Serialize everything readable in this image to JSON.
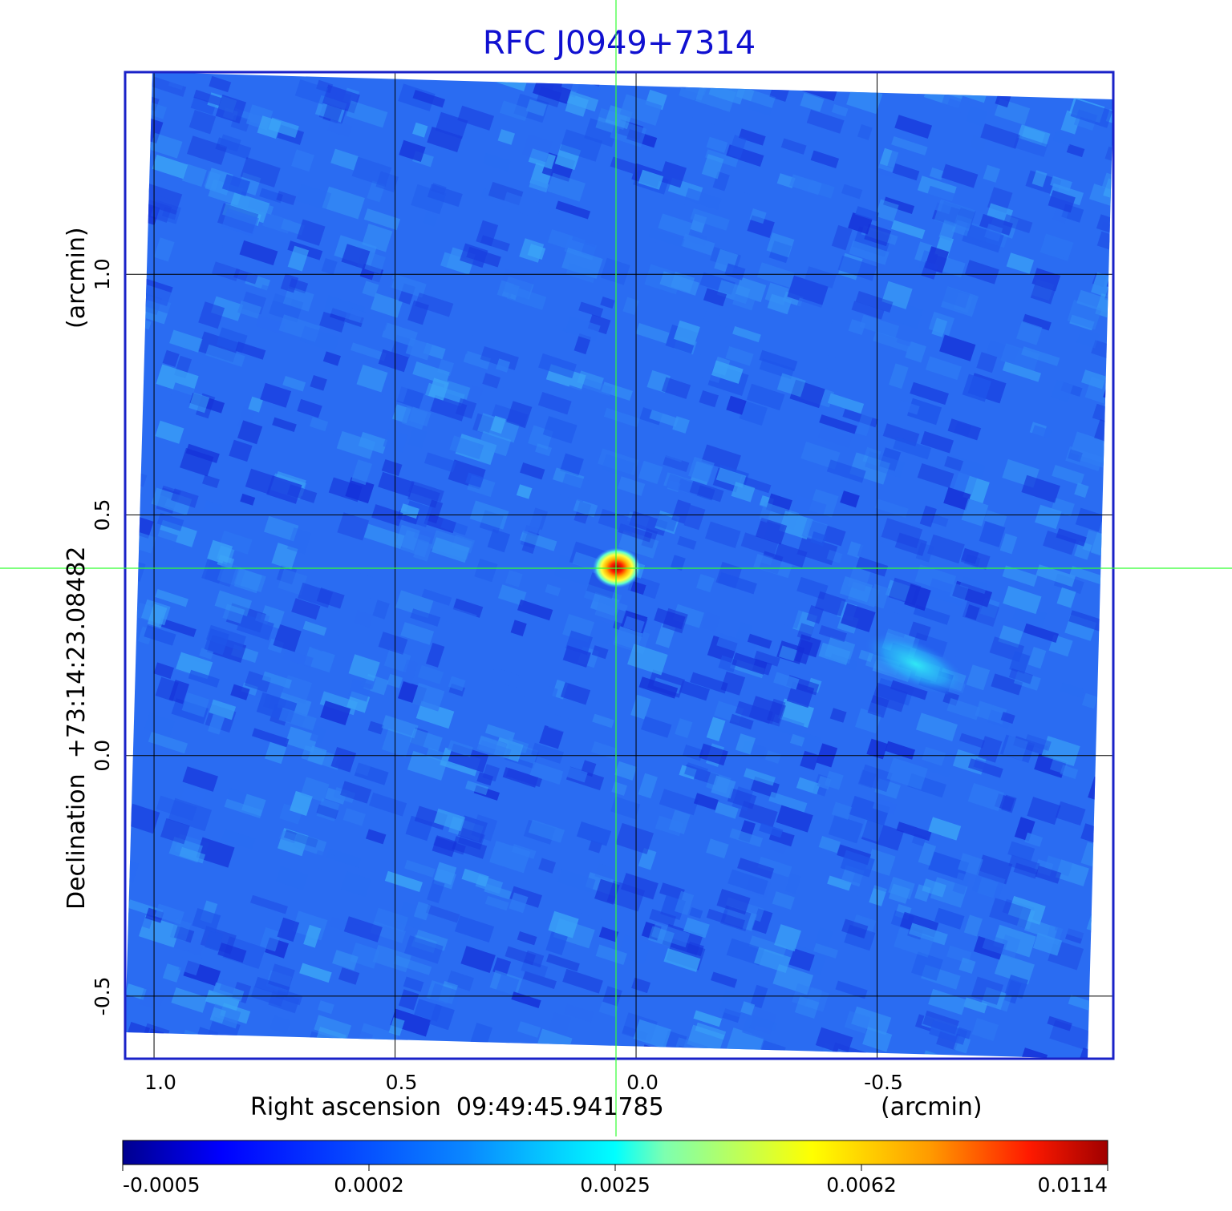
{
  "chart_data": {
    "type": "heatmap",
    "title": "RFC J0949+7314",
    "xlabel": "Right ascension  09:49:45.941785",
    "xunit": "(arcmin)",
    "ylabel": "Declination  +73:14:23.08482",
    "yunit": "(arcmin)",
    "x_ticks": [
      "1.0",
      "0.5",
      "0.0",
      "-0.5"
    ],
    "x_tick_values": [
      1.0,
      0.5,
      0.0,
      -0.5
    ],
    "y_ticks": [
      "1.0",
      "0.5",
      "0.0",
      "-0.5"
    ],
    "y_tick_values": [
      1.0,
      0.5,
      0.0,
      -0.5
    ],
    "xlim": [
      1.06,
      -0.99
    ],
    "ylim": [
      -0.63,
      1.42
    ],
    "grid": true,
    "source": {
      "x": 0.04,
      "y": 0.39,
      "peak": 0.0114
    },
    "secondary_feature": {
      "x": -0.58,
      "y": 0.19
    },
    "colorbar": {
      "ticks": [
        "-0.0005",
        "0.0002",
        "0.0025",
        "0.0062",
        "0.0114"
      ],
      "tick_values": [
        -0.0005,
        0.0002,
        0.0025,
        0.0062,
        0.0114
      ],
      "colormap": "jet"
    }
  },
  "colors": {
    "title": "#1010d0",
    "frame": "#1a22c8",
    "grid": "#000000",
    "crosshair": "#33ff33",
    "background_field": "#2a6cf2"
  }
}
